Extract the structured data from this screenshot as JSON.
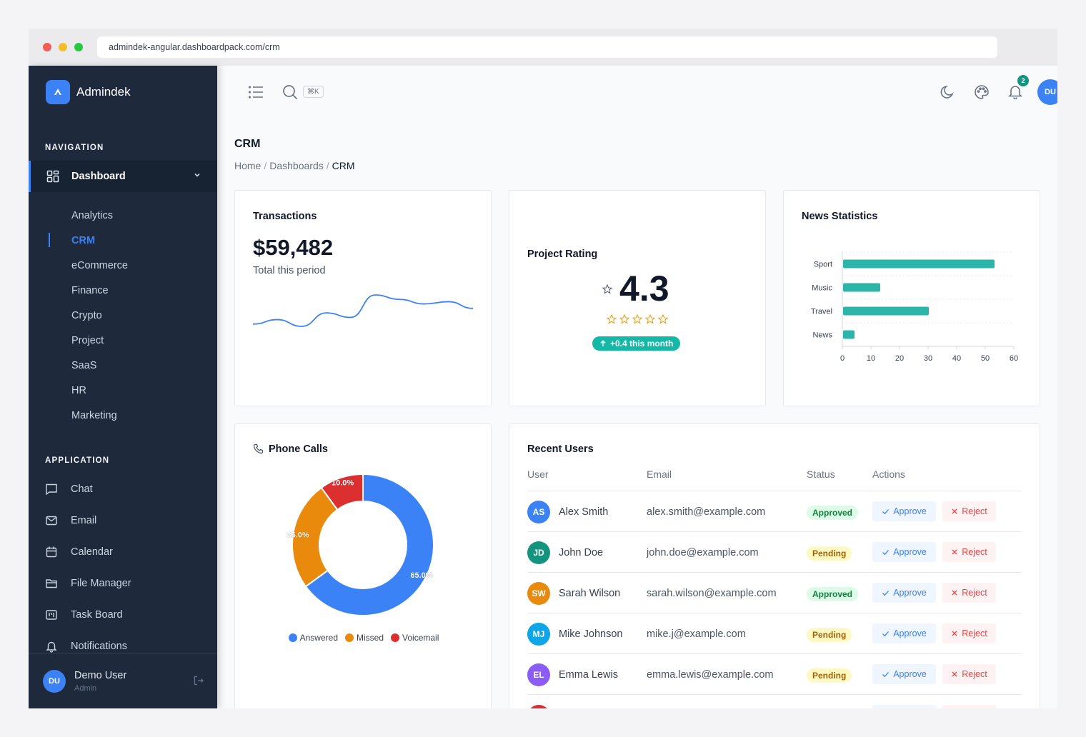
{
  "browser": {
    "url": "admindek-angular.dashboardpack.com/crm"
  },
  "brand": {
    "name": "Admindek"
  },
  "sidebar": {
    "nav_title": "NAVIGATION",
    "dashboard_label": "Dashboard",
    "sub_items": [
      "Analytics",
      "CRM",
      "eCommerce",
      "Finance",
      "Crypto",
      "Project",
      "SaaS",
      "HR",
      "Marketing"
    ],
    "active_sub": "CRM",
    "app_title": "APPLICATION",
    "app_items": [
      "Chat",
      "Email",
      "Calendar",
      "File Manager",
      "Task Board",
      "Notifications"
    ],
    "user": {
      "initials": "DU",
      "name": "Demo User",
      "role": "Admin"
    }
  },
  "topbar": {
    "kbd_hint": "⌘K",
    "notification_count": "2",
    "avatar_initials": "DU"
  },
  "page": {
    "title": "CRM",
    "breadcrumb": [
      "Home",
      "Dashboards",
      "CRM"
    ]
  },
  "transactions": {
    "title": "Transactions",
    "amount": "$59,482",
    "subtitle": "Total this period",
    "sparkline": [
      6,
      8,
      5,
      11,
      9,
      19,
      17,
      15,
      16,
      13
    ]
  },
  "rating": {
    "title": "Project Rating",
    "value": "4.3",
    "stars": 5,
    "change": "+0.4 this month"
  },
  "news_stats": {
    "title": "News Statistics",
    "chart_data": {
      "type": "bar",
      "orientation": "horizontal",
      "categories": [
        "Sport",
        "Music",
        "Travel",
        "News"
      ],
      "values": [
        53,
        13,
        30,
        4
      ],
      "xlim": [
        0,
        60
      ],
      "xticks": [
        "0",
        "10",
        "20",
        "30",
        "40",
        "50",
        "60"
      ],
      "color": "#2cb5a8",
      "grid": true
    }
  },
  "phone_calls": {
    "title": "Phone Calls",
    "chart_data": {
      "type": "pie",
      "donut": true,
      "categories": [
        "Answered",
        "Missed",
        "Voicemail"
      ],
      "values": [
        65.0,
        25.0,
        10.0
      ],
      "labels": [
        "65.0%",
        "25.0%",
        "10.0%"
      ],
      "colors": [
        "#3b82f6",
        "#ea8a0c",
        "#dc2f2f"
      ]
    }
  },
  "recent_users": {
    "title": "Recent Users",
    "columns": [
      "User",
      "Email",
      "Status",
      "Actions"
    ],
    "approve_label": "Approve",
    "reject_label": "Reject",
    "rows": [
      {
        "initials": "AS",
        "name": "Alex Smith",
        "email": "alex.smith@example.com",
        "status": "Approved",
        "color": "#3b82f6"
      },
      {
        "initials": "JD",
        "name": "John Doe",
        "email": "john.doe@example.com",
        "status": "Pending",
        "color": "#14937f"
      },
      {
        "initials": "SW",
        "name": "Sarah Wilson",
        "email": "sarah.wilson@example.com",
        "status": "Approved",
        "color": "#ea8a0c"
      },
      {
        "initials": "MJ",
        "name": "Mike Johnson",
        "email": "mike.j@example.com",
        "status": "Pending",
        "color": "#0ea5e9"
      },
      {
        "initials": "EL",
        "name": "Emma Lewis",
        "email": "emma.lewis@example.com",
        "status": "Pending",
        "color": "#8b5cf6"
      }
    ]
  }
}
